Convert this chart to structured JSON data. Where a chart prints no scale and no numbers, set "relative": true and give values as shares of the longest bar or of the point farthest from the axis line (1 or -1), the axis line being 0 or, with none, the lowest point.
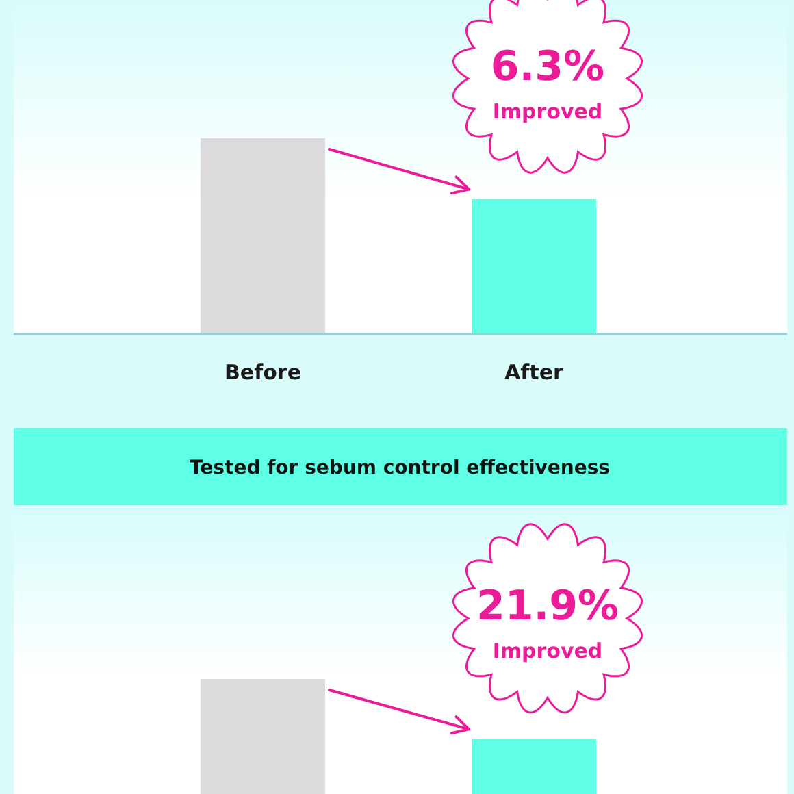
{
  "chart_data": [
    {
      "type": "bar",
      "categories": [
        "Before",
        "After"
      ],
      "values": [
        1,
        0.69
      ],
      "colors": [
        "#dcdadd",
        "#5effe5"
      ],
      "relative": true,
      "annotations": [
        "6.3%",
        "Improved"
      ]
    },
    {
      "type": "bar",
      "title": "Tested for sebum control effectiveness",
      "categories": [
        null,
        null
      ],
      "values": [
        1,
        0.48
      ],
      "colors": [
        "#dcdadd",
        "#5effe5"
      ],
      "relative": true,
      "annotations": [
        "21.9%",
        "Improved"
      ]
    }
  ]
}
